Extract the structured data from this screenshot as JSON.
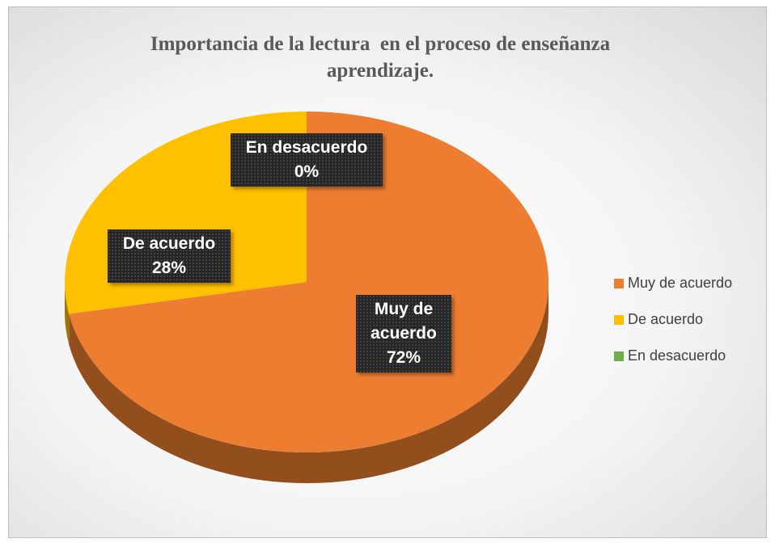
{
  "chart_data": {
    "type": "pie",
    "title": "Importancia de la lectura  en el proceso de enseñanza aprendizaje.",
    "categories": [
      "Muy de acuerdo",
      "De acuerdo",
      "En desacuerdo"
    ],
    "values": [
      72,
      28,
      0
    ],
    "value_labels": [
      "72%",
      "28%",
      "0%"
    ],
    "colors": [
      "#ED7D31",
      "#FFC000",
      "#70AD47"
    ],
    "legend": "right"
  }
}
